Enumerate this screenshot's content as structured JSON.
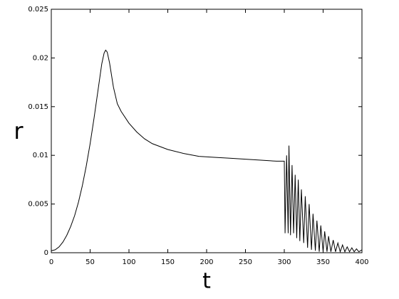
{
  "chart_data": {
    "type": "line",
    "xlabel": "t",
    "ylabel": "r",
    "x": [
      0,
      5,
      10,
      15,
      20,
      25,
      30,
      35,
      40,
      45,
      50,
      55,
      60,
      65,
      68,
      70,
      72,
      75,
      80,
      85,
      90,
      100,
      110,
      120,
      130,
      140,
      150,
      170,
      190,
      210,
      230,
      250,
      270,
      290,
      299,
      300,
      301,
      303,
      305,
      306,
      308,
      310,
      312,
      314,
      316,
      318,
      320,
      322,
      325,
      327,
      330,
      332,
      335,
      337,
      340,
      342,
      345,
      347,
      350,
      352,
      355,
      357,
      360,
      363,
      366,
      369,
      372,
      375,
      378,
      381,
      384,
      387,
      390,
      393,
      396,
      400
    ],
    "values": [
      0.0002,
      0.0003,
      0.0006,
      0.0011,
      0.0018,
      0.0027,
      0.0038,
      0.0052,
      0.0069,
      0.0089,
      0.0112,
      0.0138,
      0.0166,
      0.0194,
      0.0205,
      0.0208,
      0.0206,
      0.0195,
      0.017,
      0.0153,
      0.0145,
      0.0133,
      0.0124,
      0.0117,
      0.0112,
      0.0109,
      0.0106,
      0.0102,
      0.0099,
      0.0098,
      0.0097,
      0.0096,
      0.0095,
      0.0094,
      0.0094,
      0.0094,
      0.002,
      0.01,
      0.002,
      0.011,
      0.0018,
      0.009,
      0.002,
      0.008,
      0.0015,
      0.0075,
      0.0012,
      0.0065,
      0.001,
      0.0058,
      0.0005,
      0.005,
      0.0003,
      0.004,
      0.0002,
      0.0033,
      0.0001,
      0.0028,
      0.0001,
      0.0022,
      0.0001,
      0.0017,
      0.0001,
      0.0013,
      0.0001,
      0.001,
      0.0001,
      0.0008,
      0.0001,
      0.0006,
      0.0001,
      0.0005,
      0.0001,
      0.0004,
      0.0001,
      0.0003
    ],
    "color": "#000000",
    "xlim": [
      0,
      400
    ],
    "xticks": [
      0,
      50,
      100,
      150,
      200,
      250,
      300,
      350,
      400
    ],
    "ylim": [
      0,
      0.025
    ],
    "yticks": [
      0,
      0.005,
      0.01,
      0.015,
      0.02,
      0.025
    ]
  }
}
